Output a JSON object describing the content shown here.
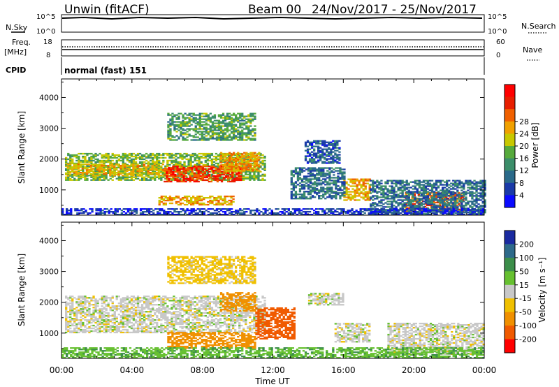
{
  "header": {
    "station": "Unwin (fitACF)",
    "beam": "Beam 00",
    "date_range": "24/Nov/2017 - 25/Nov/2017"
  },
  "top_panels": {
    "nsky": {
      "label": "N.Sky",
      "tick_top": "10^5",
      "tick_bottom": "10^0"
    },
    "nsearch": {
      "label": "N.Search",
      "tick_top": "10^5",
      "tick_bottom": "10^0"
    },
    "freq": {
      "label_line1": "Freq.",
      "label_line2": "[MHz]",
      "tick_top": "18",
      "tick_bottom": "8"
    },
    "nave": {
      "label": "Nave",
      "tick_top": "60",
      "tick_bottom": "0"
    },
    "cpid": {
      "label": "CPID",
      "value": "normal (fast) 151"
    }
  },
  "chart_data": [
    {
      "type": "heatmap",
      "name": "power",
      "ylabel": "Slant Range [km]",
      "xlabel": "Time UT",
      "ylim": [
        180,
        4600
      ],
      "xlim_hours": [
        0,
        24
      ],
      "y_ticks": [
        1000,
        2000,
        3000,
        4000
      ],
      "x_ticks": [
        "00:00",
        "04:00",
        "08:00",
        "12:00",
        "16:00",
        "20:00",
        "00:00"
      ],
      "colorbar": {
        "label": "Power [dB]",
        "ticks": [
          "4",
          "8",
          "12",
          "16",
          "20",
          "24",
          "28"
        ],
        "colors": [
          "#0a0aff",
          "#1a3aa8",
          "#2a6a8a",
          "#3c8e6a",
          "#56aa3c",
          "#c8c800",
          "#f0a000",
          "#f06000",
          "#e81e00",
          "#ff0000"
        ]
      },
      "regions": [
        {
          "t": [
            0.2,
            11.5
          ],
          "r": [
            1300,
            2200
          ],
          "value": 16
        },
        {
          "t": [
            0.3,
            6.0
          ],
          "r": [
            1450,
            1850
          ],
          "value": 20
        },
        {
          "t": [
            5.8,
            10.2
          ],
          "r": [
            1250,
            1750
          ],
          "value": 27
        },
        {
          "t": [
            9.0,
            11.2
          ],
          "r": [
            1600,
            2200
          ],
          "value": 22
        },
        {
          "t": [
            5.5,
            9.8
          ],
          "r": [
            500,
            800
          ],
          "value": 21
        },
        {
          "t": [
            16.0,
            17.5
          ],
          "r": [
            650,
            1350
          ],
          "value": 21
        },
        {
          "t": [
            19.5,
            22.8
          ],
          "r": [
            300,
            900
          ],
          "value": 25
        },
        {
          "t": [
            6.0,
            11.0
          ],
          "r": [
            2600,
            3500
          ],
          "value": 14
        },
        {
          "t": [
            13.8,
            15.8
          ],
          "r": [
            1850,
            2600
          ],
          "value": 8
        },
        {
          "t": [
            17.5,
            24.0
          ],
          "r": [
            200,
            1300
          ],
          "value": 10
        },
        {
          "t": [
            0.0,
            24.0
          ],
          "r": [
            180,
            400
          ],
          "value": 6
        },
        {
          "t": [
            13.0,
            16.0
          ],
          "r": [
            700,
            1700
          ],
          "value": 10
        }
      ]
    },
    {
      "type": "heatmap",
      "name": "velocity",
      "ylabel": "Slant Range [km]",
      "xlabel": "Time UT",
      "ylim": [
        180,
        4600
      ],
      "xlim_hours": [
        0,
        24
      ],
      "y_ticks": [
        1000,
        2000,
        3000,
        4000
      ],
      "x_ticks": [
        "00:00",
        "04:00",
        "08:00",
        "12:00",
        "16:00",
        "20:00",
        "00:00"
      ],
      "colorbar": {
        "label": "Velocity [m s⁻¹]",
        "ticks": [
          "200",
          "100",
          "50",
          "15",
          "-15",
          "-50",
          "-100",
          "-200"
        ],
        "colors": [
          "#1a2aa0",
          "#2e6a8a",
          "#3c8e4a",
          "#66c030",
          "#c8c8c8",
          "#f0c000",
          "#f09000",
          "#f05a00",
          "#ff0000"
        ]
      },
      "regions": [
        {
          "t": [
            0.2,
            11.5
          ],
          "r": [
            1000,
            2200
          ],
          "value": 0
        },
        {
          "t": [
            11.0,
            13.2
          ],
          "r": [
            800,
            1800
          ],
          "value": -140
        },
        {
          "t": [
            9.0,
            11.0
          ],
          "r": [
            1700,
            2300
          ],
          "value": -80
        },
        {
          "t": [
            6.0,
            11.0
          ],
          "r": [
            500,
            1000
          ],
          "value": -70
        },
        {
          "t": [
            14.0,
            16.0
          ],
          "r": [
            1900,
            2300
          ],
          "value": 0
        },
        {
          "t": [
            15.5,
            17.5
          ],
          "r": [
            700,
            1300
          ],
          "value": 0
        },
        {
          "t": [
            18.5,
            24.0
          ],
          "r": [
            300,
            1300
          ],
          "value": 0
        },
        {
          "t": [
            6.0,
            11.0
          ],
          "r": [
            2600,
            3500
          ],
          "value": -30
        },
        {
          "t": [
            0.0,
            24.0
          ],
          "r": [
            180,
            500
          ],
          "value": 40
        }
      ]
    }
  ]
}
